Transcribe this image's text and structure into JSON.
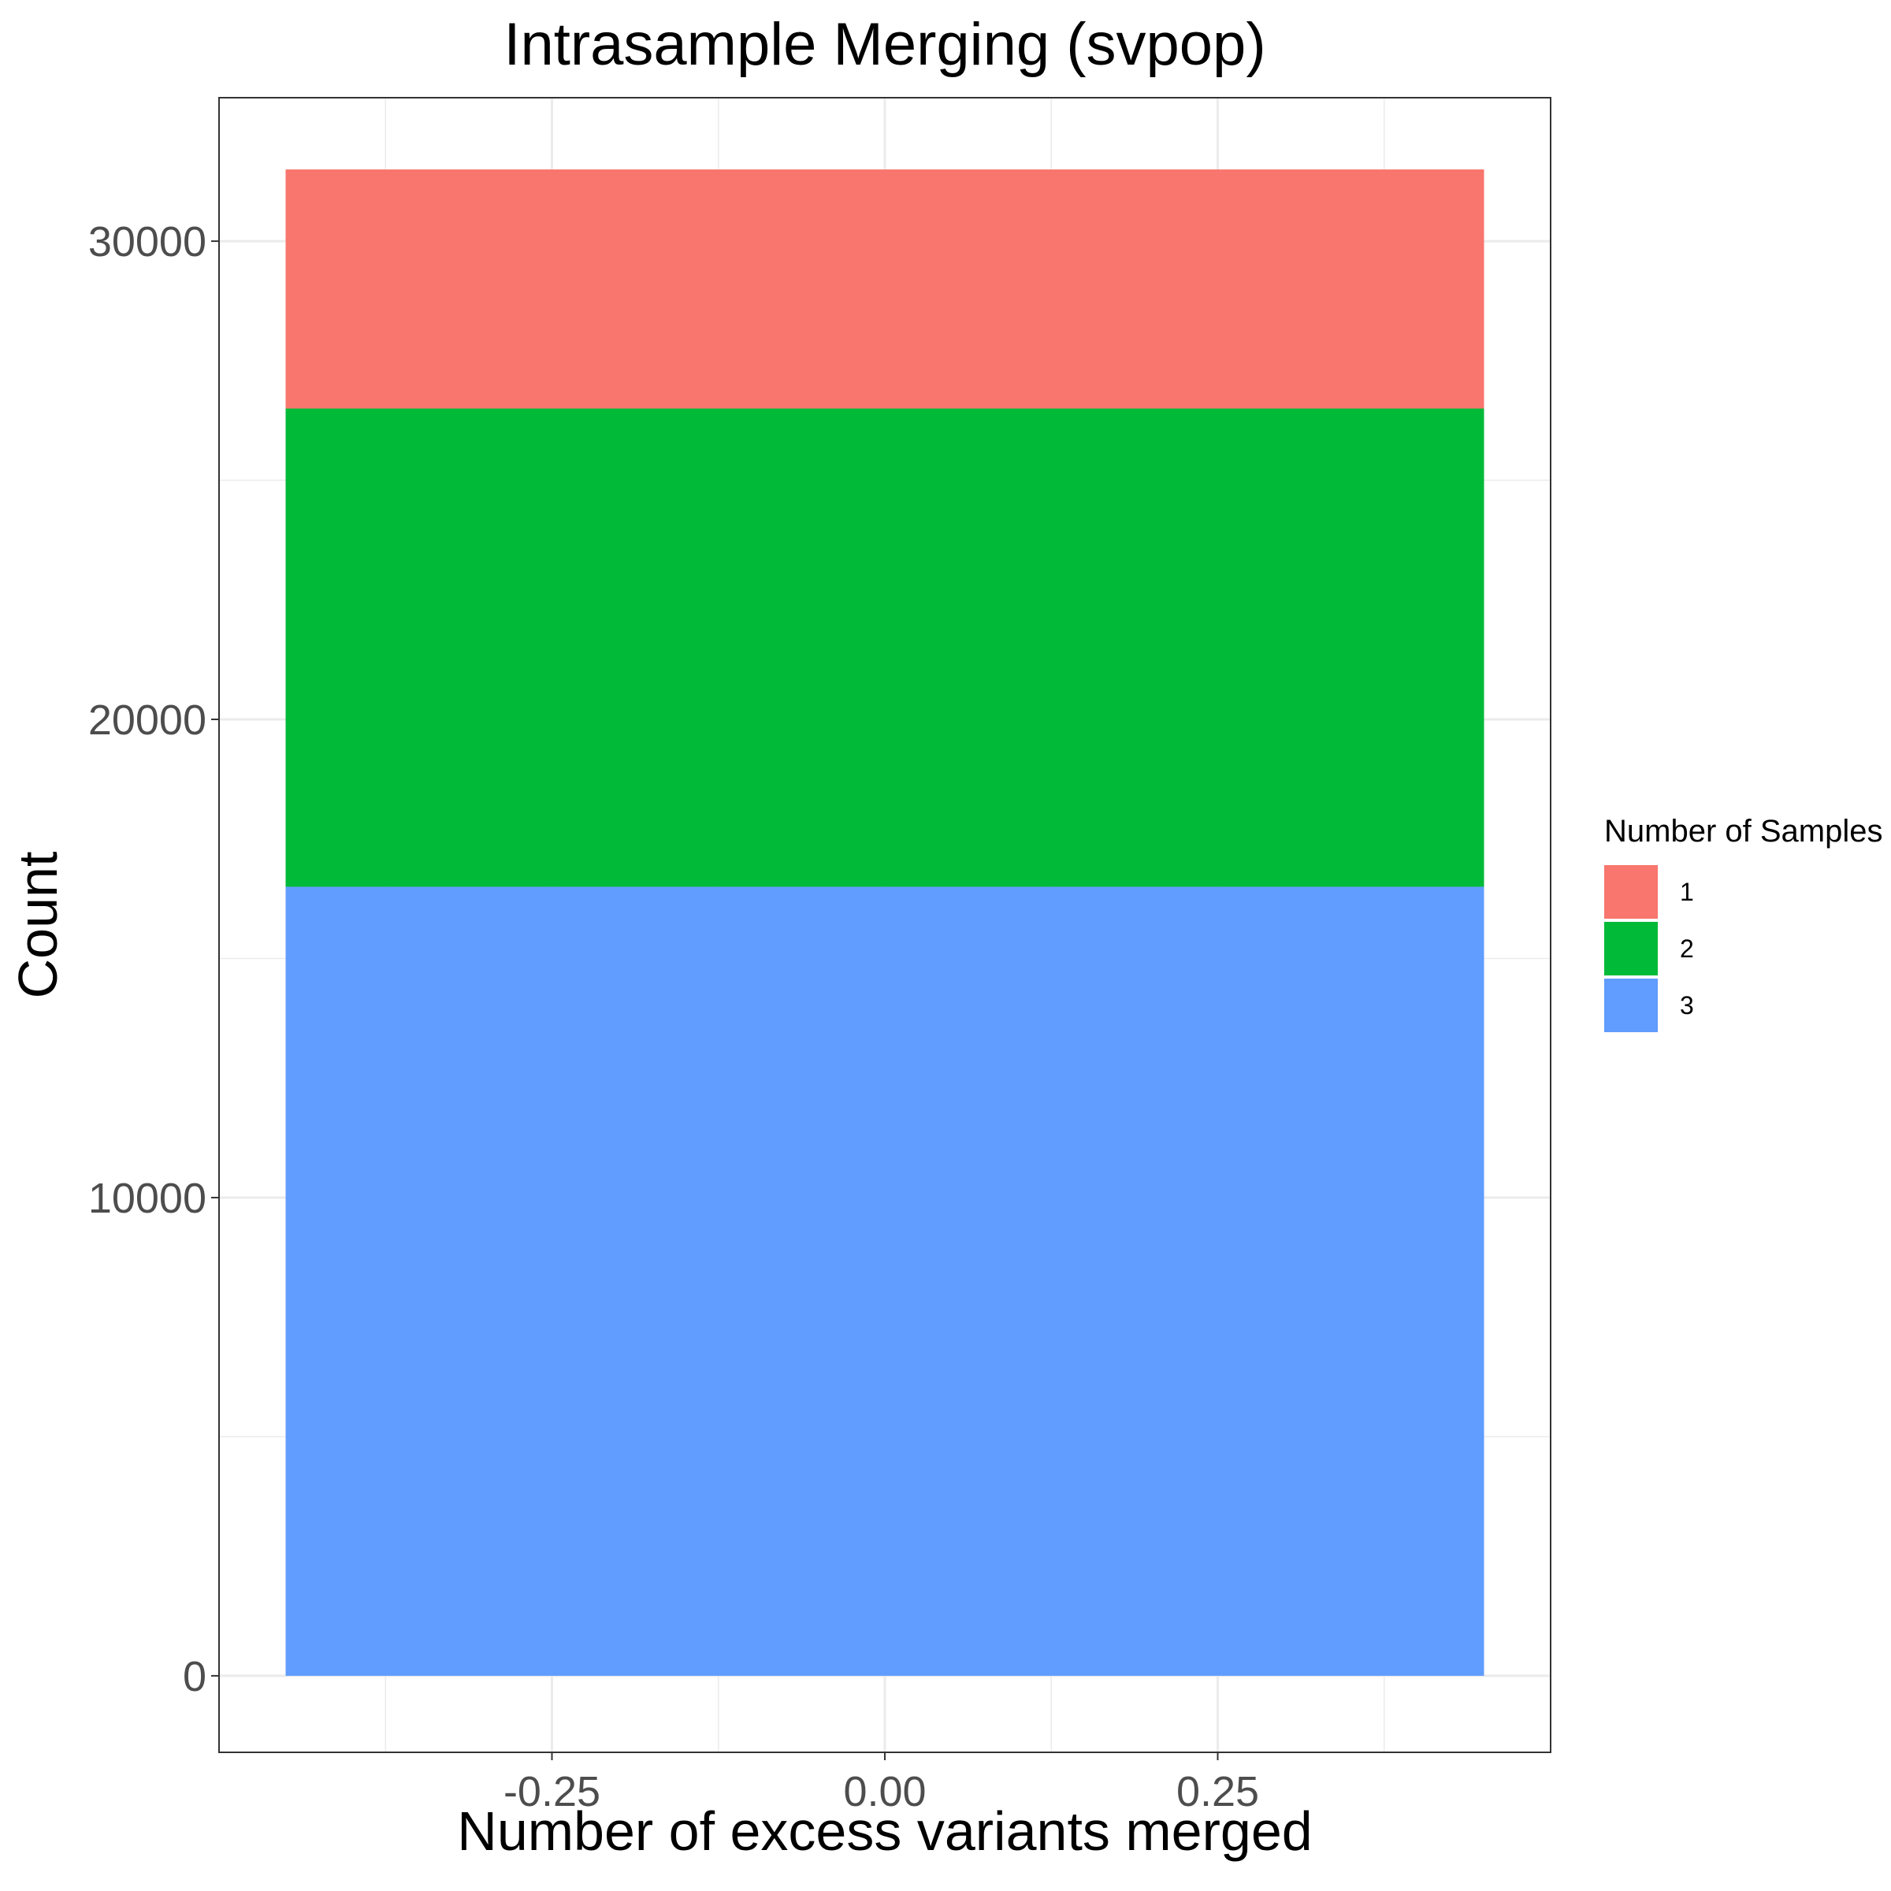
{
  "chart_data": {
    "type": "bar",
    "stacked": true,
    "title": "Intrasample Merging (svpop)",
    "xlabel": "Number of excess variants merged",
    "ylabel": "Count",
    "xlim": [
      -0.5,
      0.5
    ],
    "ylim": [
      -1600,
      33000
    ],
    "x_ticks": [
      -0.25,
      0.0,
      0.25
    ],
    "x_tick_labels": [
      "-0.25",
      "0.00",
      "0.25"
    ],
    "y_ticks": [
      0,
      10000,
      20000,
      30000
    ],
    "y_tick_labels": [
      "0",
      "10000",
      "20000",
      "30000"
    ],
    "grid": true,
    "bar": {
      "x": 0,
      "width": 0.9
    },
    "series": [
      {
        "name": "1",
        "value": 5000,
        "color": "#F8766D"
      },
      {
        "name": "2",
        "value": 10000,
        "color": "#00BA38"
      },
      {
        "name": "3",
        "value": 16500,
        "color": "#619CFF"
      }
    ],
    "legend": {
      "title": "Number of Samples",
      "position": "right"
    }
  }
}
